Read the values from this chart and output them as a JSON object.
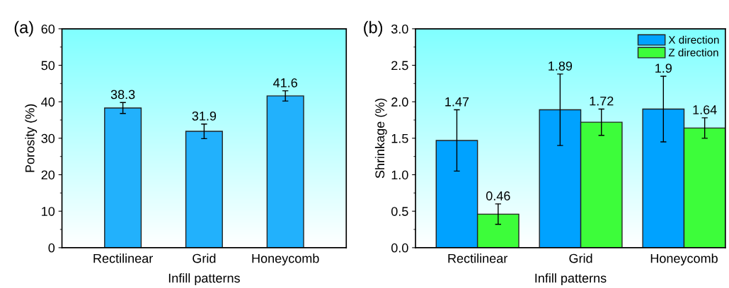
{
  "chart_data": [
    {
      "type": "bar",
      "title": "(a)",
      "xlabel": "Infill patterns",
      "ylabel": "Porosity (%)",
      "categories": [
        "Rectilinear",
        "Grid",
        "Honeycomb"
      ],
      "series": [
        {
          "color": "#22b1fc",
          "values": [
            38.3,
            31.9,
            41.6
          ],
          "errors": [
            1.5,
            2.0,
            1.4
          ]
        }
      ],
      "ylim": [
        0,
        60
      ],
      "yticks": [
        0,
        10,
        20,
        30,
        40,
        50,
        60
      ],
      "data_labels": true,
      "grid": false,
      "legend": false
    },
    {
      "type": "bar",
      "title": "(b)",
      "xlabel": "Infill patterns",
      "ylabel": "Shrinkage (%)",
      "categories": [
        "Rectilinear",
        "Grid",
        "Honeycomb"
      ],
      "series": [
        {
          "name": "X direction",
          "color": "#00a2ff",
          "values": [
            1.47,
            1.89,
            1.9
          ],
          "errors": [
            0.42,
            0.49,
            0.45
          ]
        },
        {
          "name": "Z direction",
          "color": "#3dfd3a",
          "values": [
            0.46,
            1.72,
            1.64
          ],
          "errors": [
            0.14,
            0.18,
            0.14
          ]
        }
      ],
      "ylim": [
        0,
        3.0
      ],
      "yticks": [
        {
          "value": 0,
          "label": "0.0"
        },
        {
          "value": 0.5,
          "label": "0.5"
        },
        {
          "value": 1.0,
          "label": "1.0"
        },
        {
          "value": 1.5,
          "label": "1.5"
        },
        {
          "value": 2.0,
          "label": "2.0"
        },
        {
          "value": 2.5,
          "label": "2.5"
        },
        {
          "value": 3.0,
          "label": "3.0"
        }
      ],
      "data_labels": true,
      "grid": false,
      "legend": "top right"
    }
  ]
}
